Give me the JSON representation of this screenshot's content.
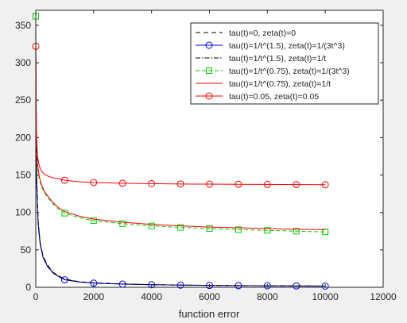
{
  "figure": {
    "background": "#f0f0f0",
    "axes_background": "#ffffff"
  },
  "chart_data": {
    "type": "line",
    "title": "",
    "xlabel": "function error",
    "ylabel": "",
    "xlim": [
      0,
      12000
    ],
    "ylim": [
      0,
      370
    ],
    "xticks": [
      0,
      2000,
      4000,
      6000,
      8000,
      10000,
      12000
    ],
    "yticks": [
      0,
      50,
      100,
      150,
      200,
      250,
      300,
      350
    ],
    "grid": false,
    "legend_position": "top-right",
    "series": [
      {
        "name": "tau(t)=0, zeta(t)=0",
        "color": "#000000",
        "dash": "6,4",
        "marker": "none",
        "x": [
          0,
          30,
          80,
          150,
          250,
          400,
          600,
          800,
          1000,
          1500,
          2000,
          3000,
          4000,
          5000,
          6000,
          7000,
          8000,
          9000,
          10000
        ],
        "y": [
          250,
          150,
          90,
          60,
          42,
          30,
          20,
          15,
          11,
          7.5,
          6,
          4.5,
          3.5,
          3,
          2.5,
          2.2,
          2,
          1.8,
          1.6
        ]
      },
      {
        "name": "tau(t)=1/t^(1.5), zeta(t)=1/(3t^3)",
        "color": "#0000ff",
        "dash": "",
        "marker": "circle",
        "x": [
          0,
          30,
          80,
          150,
          250,
          400,
          600,
          800,
          1000,
          1500,
          2000,
          3000,
          4000,
          5000,
          6000,
          7000,
          8000,
          9000,
          10000
        ],
        "y": [
          200,
          140,
          85,
          58,
          40,
          28,
          19,
          14,
          10,
          7,
          5.5,
          4.2,
          3.4,
          2.9,
          2.5,
          2.2,
          2,
          1.8,
          1.6
        ],
        "marker_x": [
          1000,
          2000,
          3000,
          4000,
          5000,
          6000,
          7000,
          8000,
          9000,
          10000
        ],
        "marker_y": [
          10,
          5.5,
          4.2,
          3.4,
          2.9,
          2.5,
          2.2,
          2,
          1.8,
          1.6
        ]
      },
      {
        "name": "tau(t)=1/t^(1.5), zeta(t)=1/t",
        "color": "#000000",
        "dash": "6,2,1.5,2",
        "marker": "none",
        "x": [
          0,
          30,
          80,
          150,
          250,
          400,
          600,
          800,
          1000,
          1500,
          2000,
          3000,
          4000,
          5000,
          6000,
          7000,
          8000,
          9000,
          10000
        ],
        "y": [
          210,
          145,
          88,
          60,
          41,
          29,
          19.5,
          14.5,
          10.5,
          7.2,
          5.8,
          4.4,
          3.5,
          3,
          2.6,
          2.3,
          2.1,
          1.9,
          1.7
        ]
      },
      {
        "name": "tau(t)=1/t^(0.75), zeta(t)=1/(3t^3)",
        "color": "#00cc00",
        "dash": "5,3",
        "marker": "square",
        "x": [
          0,
          20,
          60,
          120,
          200,
          300,
          450,
          600,
          800,
          1000,
          1500,
          2000,
          3000,
          4000,
          5000,
          6000,
          7000,
          8000,
          9000,
          10000
        ],
        "y": [
          362,
          200,
          160,
          145,
          134,
          126,
          118,
          111,
          104,
          99,
          93,
          89,
          85,
          82,
          80,
          78.5,
          77,
          76,
          75,
          74
        ],
        "marker_x": [
          0,
          1000,
          2000,
          3000,
          4000,
          5000,
          6000,
          7000,
          8000,
          9000,
          10000
        ],
        "marker_y": [
          362,
          99,
          89,
          85,
          82,
          80,
          78.5,
          77,
          76,
          75,
          74
        ]
      },
      {
        "name": "tau(t)=1/t^(0.75), zeta(t)=1/t",
        "color": "#ff0000",
        "dash": "",
        "marker": "none",
        "x": [
          0,
          20,
          60,
          120,
          200,
          300,
          450,
          600,
          800,
          1000,
          1500,
          2000,
          3000,
          4000,
          5000,
          6000,
          7000,
          8000,
          9000,
          10000
        ],
        "y": [
          362,
          205,
          165,
          148,
          137,
          128,
          120,
          113,
          106,
          101,
          95,
          91,
          87,
          84,
          82,
          80.5,
          79.5,
          78.5,
          77.5,
          77
        ]
      },
      {
        "name": "tau(t)=0.05, zeta(t)=0.05",
        "color": "#ff0000",
        "dash": "",
        "marker": "circle",
        "x": [
          0,
          20,
          60,
          120,
          200,
          300,
          450,
          600,
          800,
          1000,
          1500,
          2000,
          3000,
          4000,
          5000,
          6000,
          7000,
          8000,
          9000,
          10000
        ],
        "y": [
          322,
          210,
          175,
          162,
          155,
          151,
          148,
          146,
          145,
          143,
          141,
          140,
          139,
          138.5,
          138,
          137.8,
          137.6,
          137.4,
          137.2,
          137
        ],
        "marker_x": [
          0,
          1000,
          2000,
          3000,
          4000,
          5000,
          6000,
          7000,
          8000,
          9000,
          10000
        ],
        "marker_y": [
          322,
          143,
          140,
          139,
          138.5,
          138,
          137.8,
          137.6,
          137.4,
          137.2,
          137
        ]
      }
    ]
  }
}
